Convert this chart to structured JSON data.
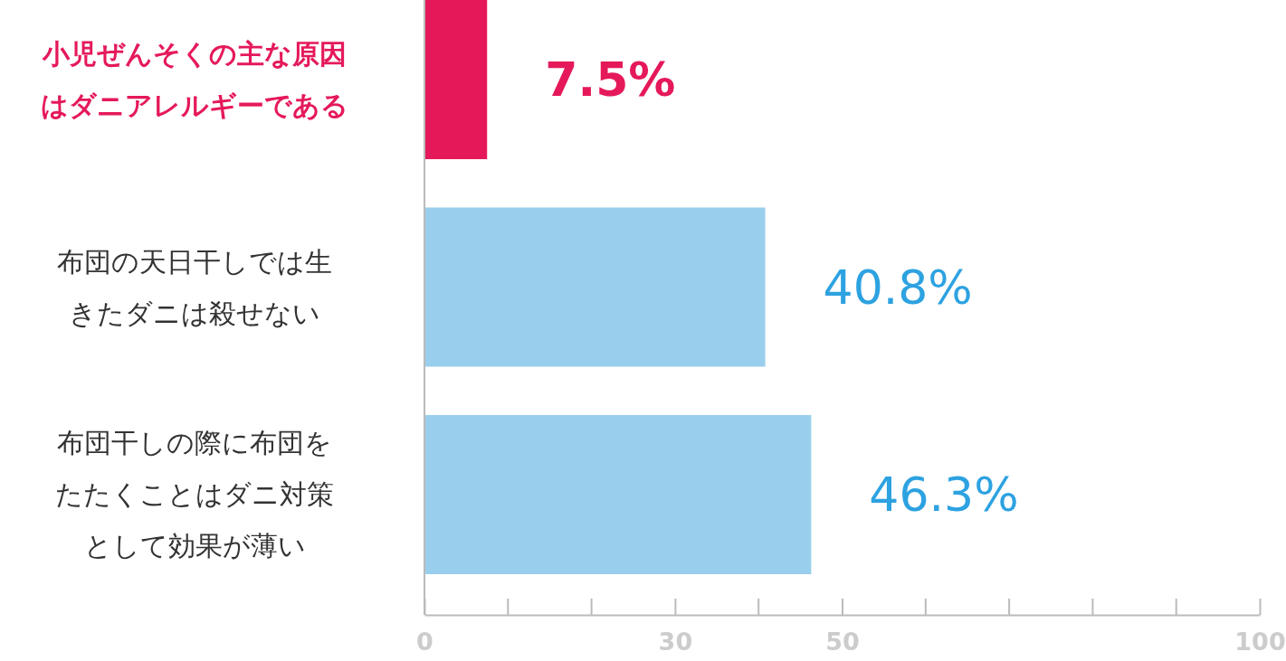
{
  "chart_data": {
    "type": "bar",
    "orientation": "horizontal",
    "categories": [
      "小児ぜんそくの主な原因はダニアレルギーである",
      "布団の天日干しでは生きたダニは殺せない",
      "布団干しの際に布団をたたくことはダニ対策として効果が薄い"
    ],
    "values": [
      7.5,
      40.8,
      46.3
    ],
    "colors": [
      "#e5195a",
      "#99cfec",
      "#99cfec"
    ],
    "value_labels": [
      "7.5%",
      "40.8%",
      "46.3%"
    ],
    "xlim": [
      0,
      100
    ],
    "xticks": [
      0,
      30,
      50,
      100
    ]
  }
}
